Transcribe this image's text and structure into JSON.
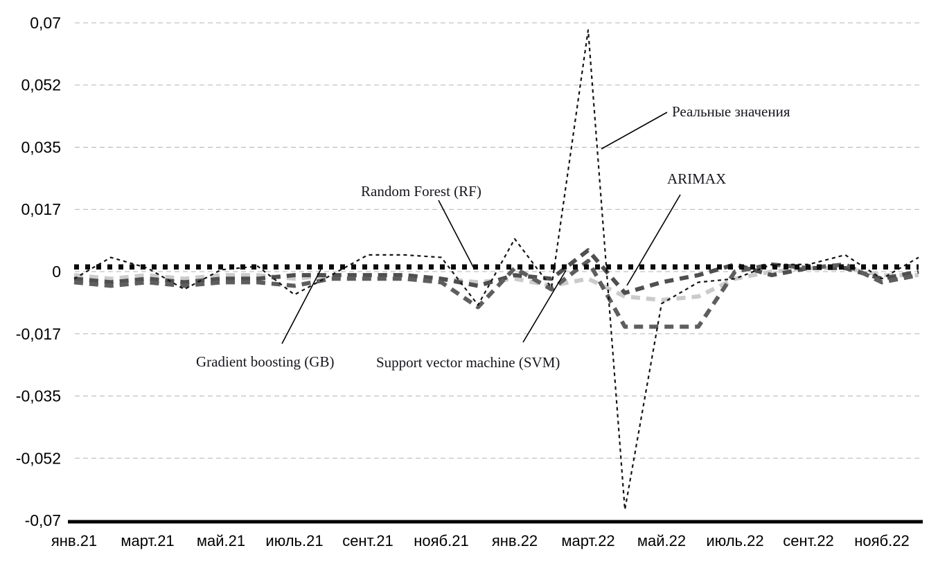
{
  "chart_data": {
    "type": "line",
    "title": "",
    "xlabel": "",
    "ylabel": "",
    "ylim": [
      -0.07,
      0.07
    ],
    "grid": "horizontal-dashed",
    "legend_position": "inline-annotations-with-leader-lines",
    "x_tick_labels": [
      "янв.21",
      "март.21",
      "май.21",
      "июль.21",
      "сент.21",
      "нояб.21",
      "янв.22",
      "март.22",
      "май.22",
      "июль.22",
      "сент.22",
      "нояб.22"
    ],
    "y_ticks": [
      {
        "label": "0,07",
        "value": 0.07
      },
      {
        "label": "0,052",
        "value": 0.0525
      },
      {
        "label": "0,035",
        "value": 0.035
      },
      {
        "label": "0,017",
        "value": 0.0175
      },
      {
        "label": "0",
        "value": 0
      },
      {
        "label": "-0,017",
        "value": -0.0175
      },
      {
        "label": "-0,035",
        "value": -0.035
      },
      {
        "label": "-0,052",
        "value": -0.0525
      },
      {
        "label": "-0,07",
        "value": -0.07
      }
    ],
    "n_months": 24,
    "series": [
      {
        "key": "gb",
        "style": "thick-dash",
        "color": "#cbcbcb",
        "values": [
          -0.001,
          -0.002,
          -0.001,
          -0.002,
          -0.001,
          -0.001,
          -0.002,
          -0.001,
          -0.001,
          -0.001,
          -0.002,
          -0.003,
          -0.002,
          -0.004,
          -0.002,
          -0.007,
          -0.008,
          -0.007,
          -0.002,
          0.0,
          0.001,
          0.001,
          -0.001,
          -0.001
        ]
      },
      {
        "key": "arimax",
        "style": "thick-dash",
        "color": "#4f4f4f",
        "values": [
          -0.002,
          -0.003,
          -0.002,
          -0.003,
          -0.002,
          -0.002,
          -0.001,
          -0.001,
          -0.001,
          -0.001,
          -0.002,
          -0.004,
          -0.001,
          -0.002,
          0.006,
          -0.006,
          -0.003,
          -0.001,
          0.002,
          -0.001,
          0.001,
          0.001,
          -0.002,
          0.0
        ]
      },
      {
        "key": "svm",
        "style": "thick-dash",
        "color": "#5e5e5e",
        "values": [
          -0.003,
          -0.004,
          -0.003,
          -0.004,
          -0.003,
          -0.003,
          -0.004,
          -0.002,
          -0.002,
          -0.002,
          -0.003,
          -0.01,
          0.001,
          -0.005,
          0.003,
          -0.0155,
          -0.0155,
          -0.0155,
          0.0,
          0.002,
          0.001,
          0.002,
          -0.003,
          -0.001
        ]
      },
      {
        "key": "real_values",
        "style": "thin-dash",
        "color": "#141414",
        "values": [
          -0.002,
          0.004,
          0.001,
          -0.005,
          0.0005,
          0.0015,
          -0.0065,
          -0.001,
          0.0047,
          0.0047,
          0.004,
          -0.0094,
          0.0092,
          -0.0045,
          0.068,
          -0.067,
          -0.009,
          -0.003,
          -0.002,
          0.002,
          0.002,
          0.0047,
          -0.002,
          0.004
        ]
      },
      {
        "key": "rf",
        "style": "square-dot",
        "color": "#0a0a0a",
        "values": [
          0.0013,
          0.0013,
          0.0013,
          0.0013,
          0.0013,
          0.0013,
          0.0013,
          0.0013,
          0.0013,
          0.0013,
          0.0013,
          0.0013,
          0.0013,
          0.0013,
          0.0013,
          0.0013,
          0.0013,
          0.0013,
          0.0013,
          0.0013,
          0.0013,
          0.0013,
          0.0013,
          0.0013
        ]
      }
    ],
    "annotations": {
      "real_values": {
        "label": "Реальные значения"
      },
      "rf": {
        "label": "Random Forest (RF)"
      },
      "arimax": {
        "label": "ARIMAX"
      },
      "gb": {
        "label": "Gradient boosting (GB)"
      },
      "svm": {
        "label": "Support vector machine (SVM)"
      }
    }
  }
}
